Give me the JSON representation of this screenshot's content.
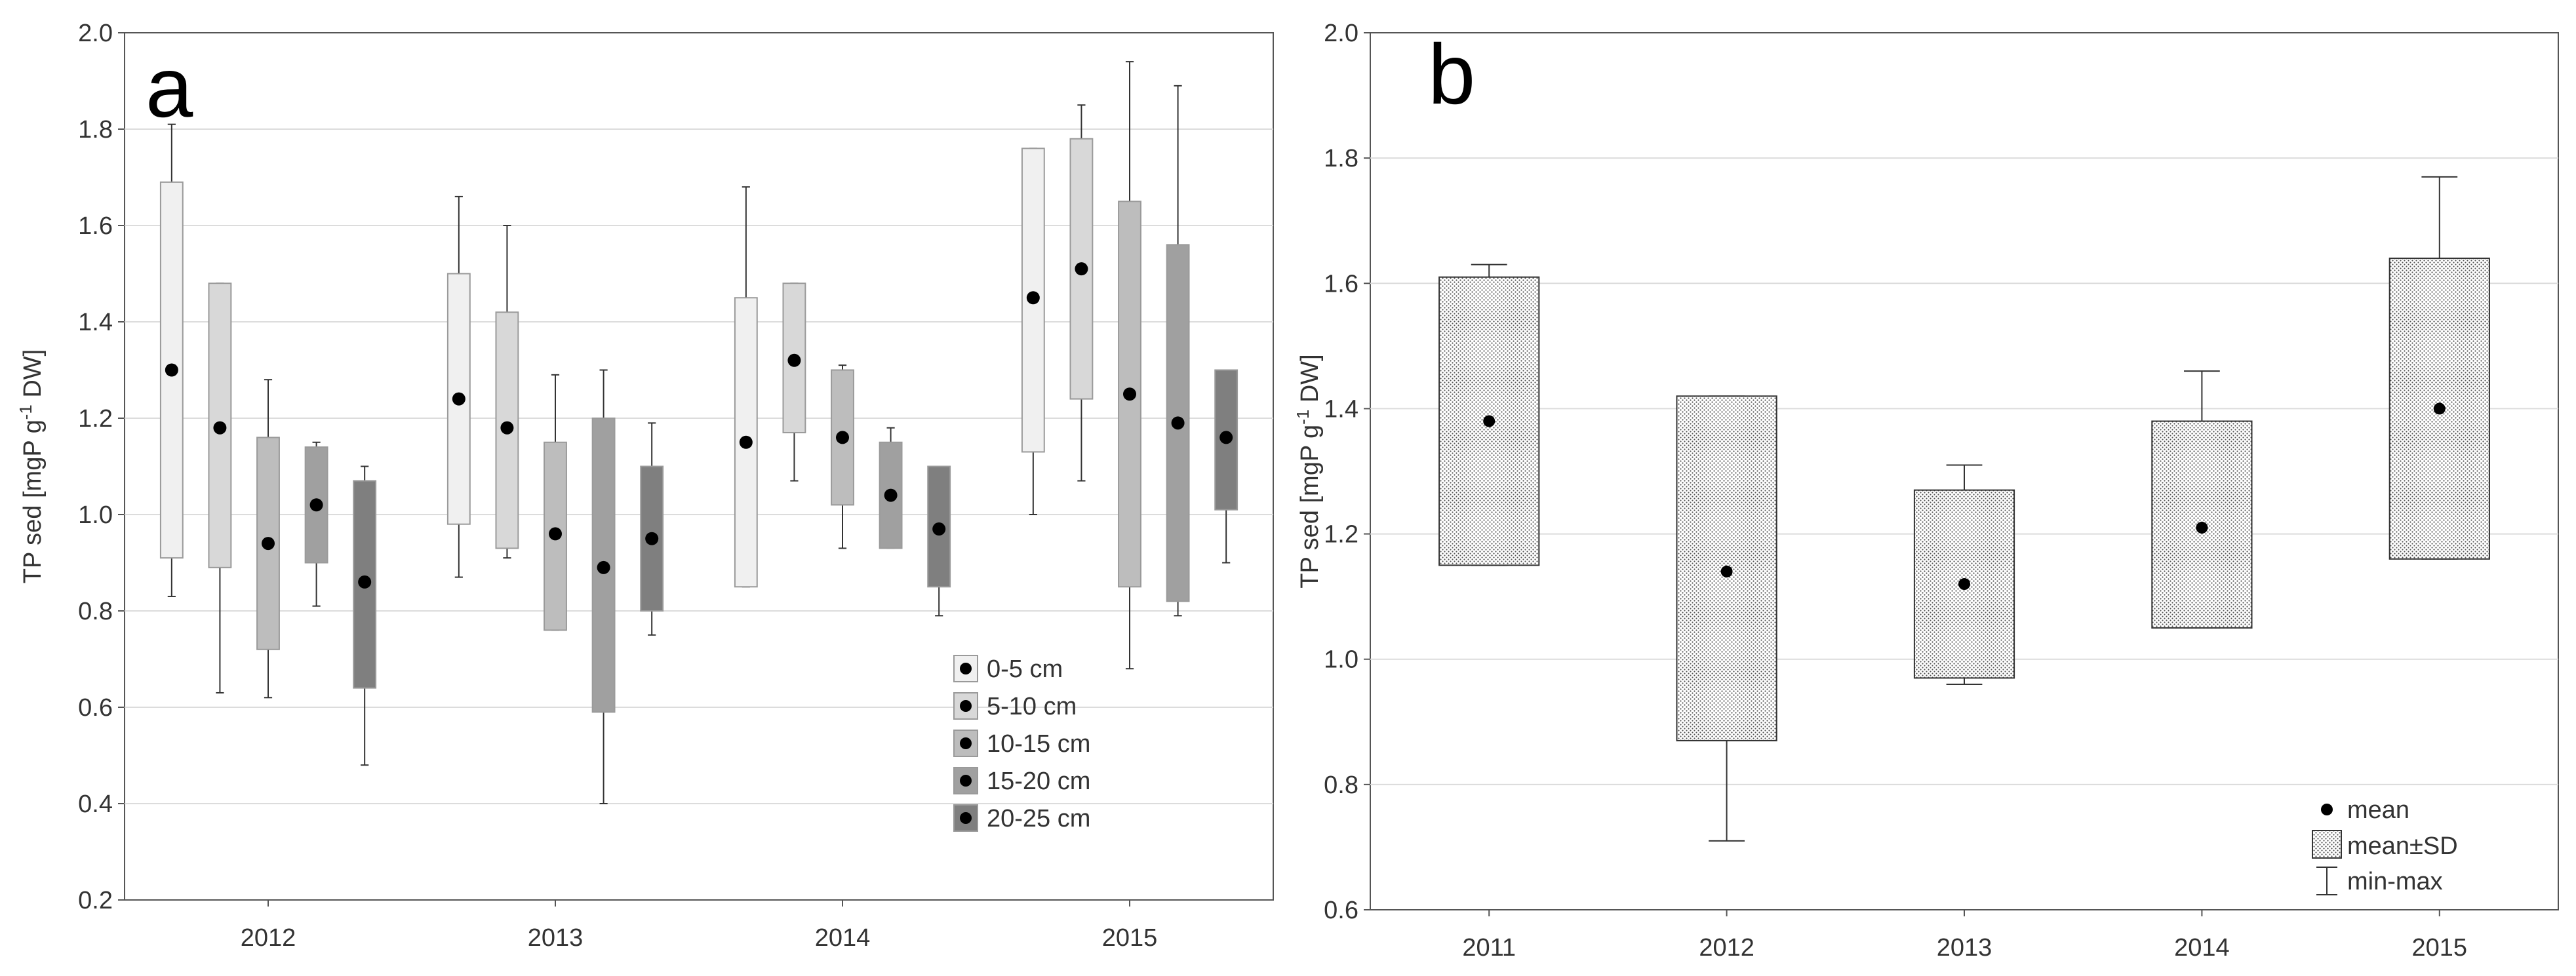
{
  "figure": {
    "panels": [
      "a",
      "b"
    ]
  },
  "chart_data": [
    {
      "panel": "a",
      "type": "box",
      "ylabel_parts": [
        "TP sed [mgP g",
        "-1",
        " DW]"
      ],
      "ylim": [
        0.2,
        2.0
      ],
      "yticks": [
        "0.2",
        "0.4",
        "0.6",
        "0.8",
        "1.0",
        "1.2",
        "1.4",
        "1.6",
        "1.8",
        "2.0"
      ],
      "categories": [
        "2012",
        "2013",
        "2014",
        "2015"
      ],
      "legend": {
        "position": "inside-bottom-right",
        "entries": [
          "0-5 cm",
          "5-10 cm",
          "10-15 cm",
          "15-20 cm",
          "20-25 cm"
        ]
      },
      "series": [
        {
          "name": "0-5 cm",
          "color": "#f0f0f0",
          "mean": [
            1.3,
            1.24,
            1.15,
            1.45
          ],
          "box_low": [
            0.91,
            0.98,
            0.85,
            1.13
          ],
          "box_high": [
            1.69,
            1.5,
            1.45,
            1.76
          ],
          "min": [
            0.83,
            0.87,
            0.85,
            1.0
          ],
          "max": [
            1.81,
            1.66,
            1.68,
            1.76
          ]
        },
        {
          "name": "5-10 cm",
          "color": "#d8d8d8",
          "mean": [
            1.18,
            1.18,
            1.32,
            1.51
          ],
          "box_low": [
            0.89,
            0.93,
            1.17,
            1.24
          ],
          "box_high": [
            1.48,
            1.42,
            1.48,
            1.78
          ],
          "min": [
            0.63,
            0.91,
            1.07,
            1.07
          ],
          "max": [
            1.48,
            1.6,
            1.48,
            1.85
          ]
        },
        {
          "name": "10-15 cm",
          "color": "#bdbdbd",
          "mean": [
            0.94,
            0.96,
            1.16,
            1.25
          ],
          "box_low": [
            0.72,
            0.76,
            1.02,
            0.85
          ],
          "box_high": [
            1.16,
            1.15,
            1.3,
            1.65
          ],
          "min": [
            0.62,
            0.76,
            0.93,
            0.68
          ],
          "max": [
            1.28,
            1.29,
            1.31,
            1.94
          ]
        },
        {
          "name": "15-20 cm",
          "color": "#a0a0a0",
          "mean": [
            1.02,
            0.89,
            1.04,
            1.19
          ],
          "box_low": [
            0.9,
            0.59,
            0.93,
            0.82
          ],
          "box_high": [
            1.14,
            1.2,
            1.15,
            1.56
          ],
          "min": [
            0.81,
            0.4,
            0.93,
            0.79
          ],
          "max": [
            1.15,
            1.3,
            1.18,
            1.89
          ]
        },
        {
          "name": "20-25 cm",
          "color": "#7f7f7f",
          "mean": [
            0.86,
            0.95,
            0.97,
            1.16
          ],
          "box_low": [
            0.64,
            0.8,
            0.85,
            1.01
          ],
          "box_high": [
            1.07,
            1.1,
            1.1,
            1.3
          ],
          "min": [
            0.48,
            0.75,
            0.79,
            0.9
          ],
          "max": [
            1.1,
            1.19,
            1.1,
            1.3
          ]
        }
      ]
    },
    {
      "panel": "b",
      "type": "box",
      "ylabel_parts": [
        "TP sed [mgP g",
        "-1",
        " DW]"
      ],
      "ylim": [
        0.6,
        2.0
      ],
      "yticks": [
        "0.6",
        "0.8",
        "1.0",
        "1.2",
        "1.4",
        "1.6",
        "1.8",
        "2.0"
      ],
      "categories": [
        "2011",
        "2012",
        "2013",
        "2014",
        "2015"
      ],
      "legend": {
        "position": "bottom-right",
        "entries": [
          "mean",
          "mean±SD",
          "min-max"
        ]
      },
      "series": [
        {
          "name": "TP sed",
          "mean": [
            1.38,
            1.14,
            1.12,
            1.21,
            1.4
          ],
          "box_low": [
            1.15,
            0.87,
            0.97,
            1.05,
            1.16
          ],
          "box_high": [
            1.61,
            1.42,
            1.27,
            1.38,
            1.64
          ],
          "min": [
            1.15,
            0.71,
            0.96,
            1.05,
            1.16
          ],
          "max": [
            1.63,
            1.42,
            1.31,
            1.46,
            1.77
          ]
        }
      ]
    }
  ]
}
